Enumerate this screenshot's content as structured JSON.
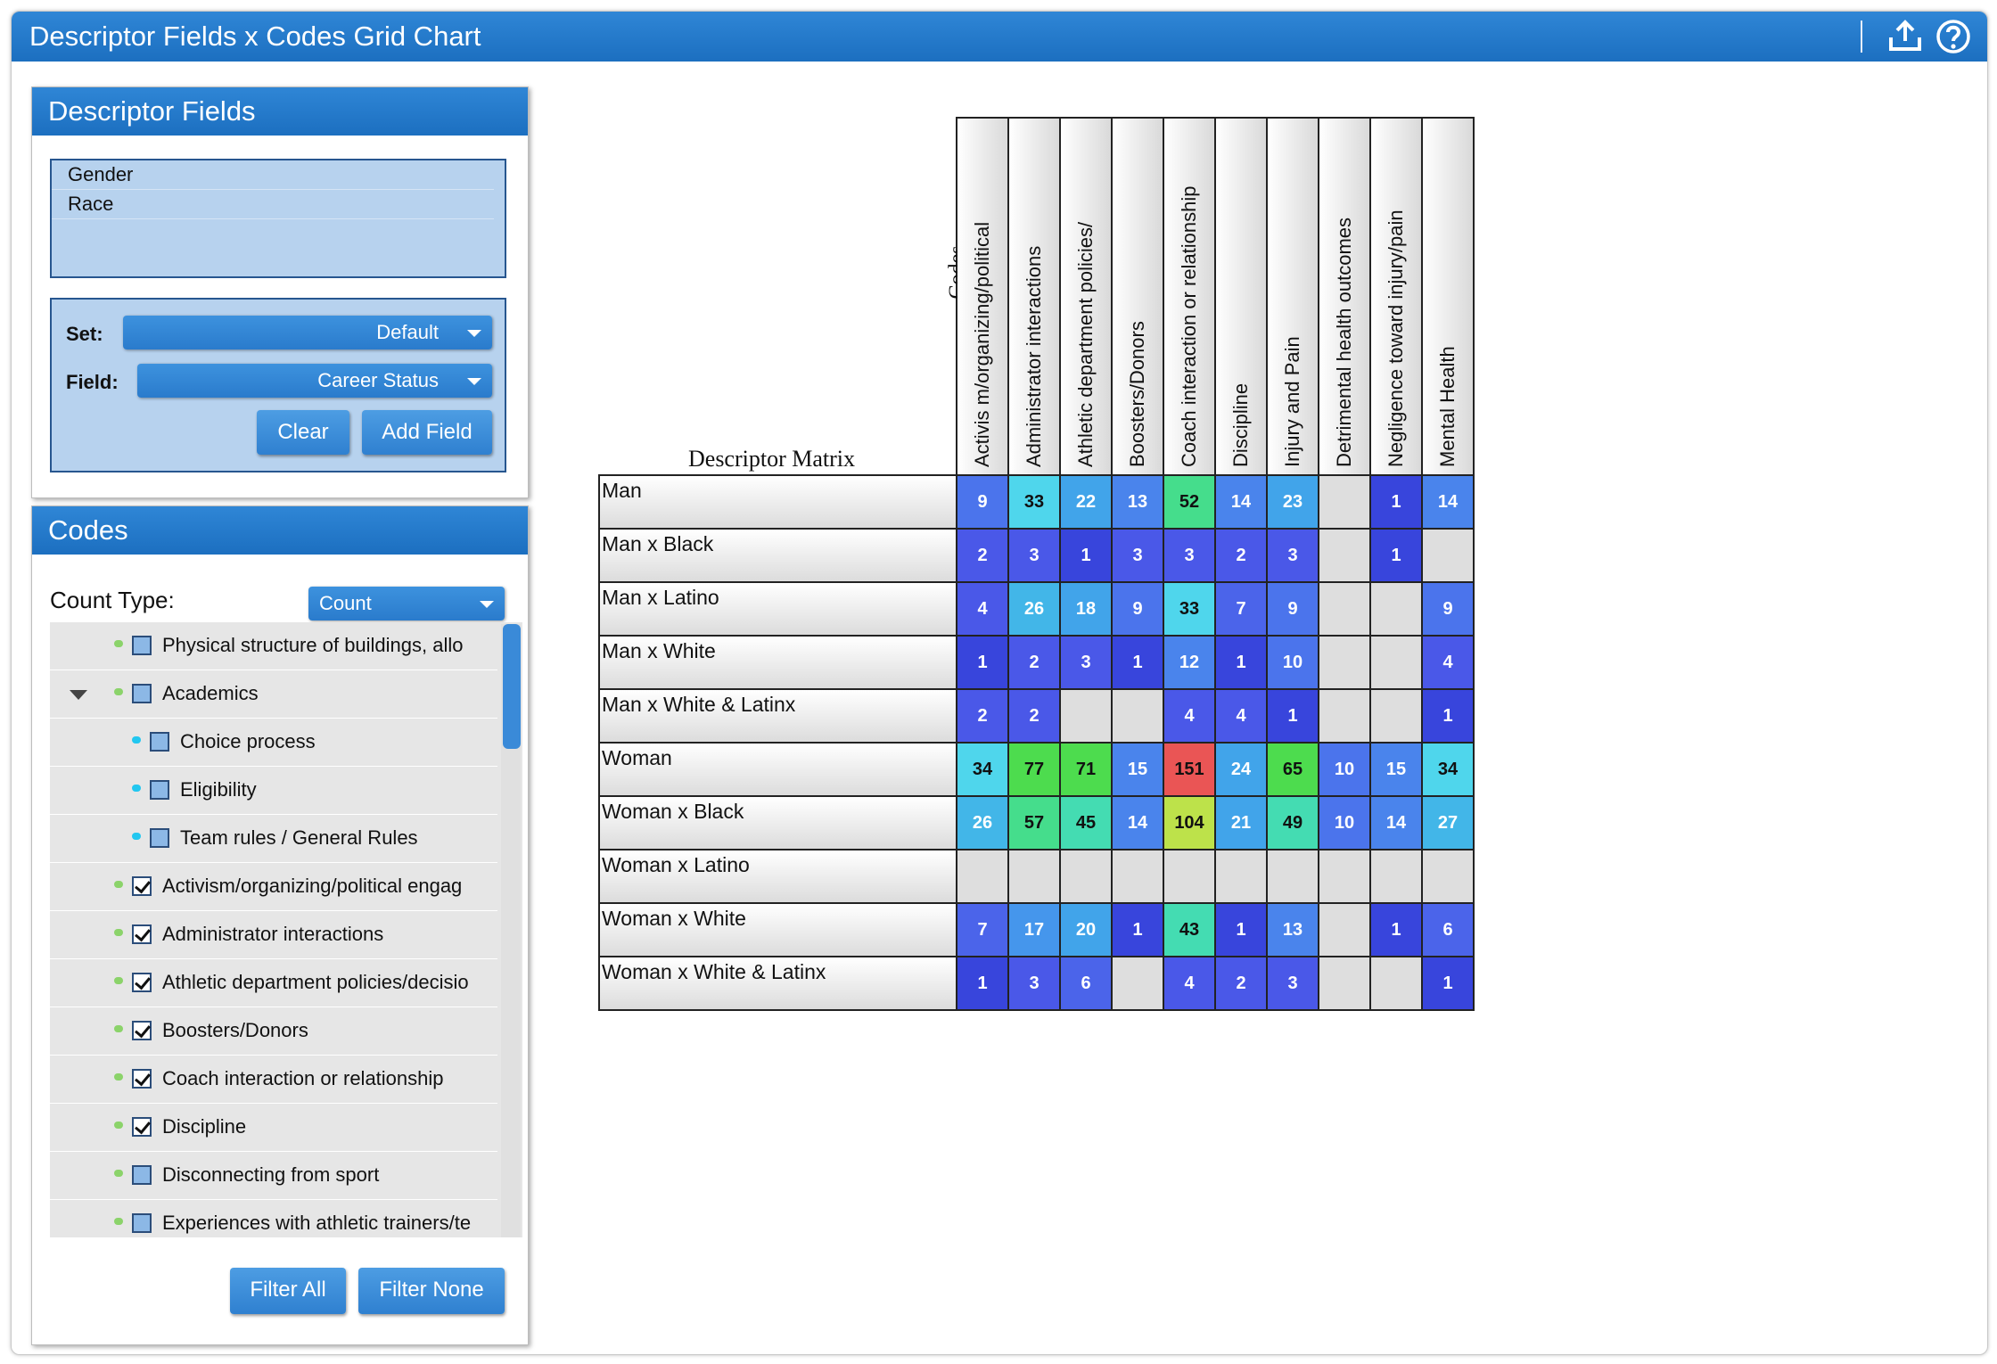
{
  "window": {
    "title": "Descriptor Fields x Codes Grid Chart",
    "upload_icon": "upload-icon",
    "help_icon": "help-icon"
  },
  "descriptor_fields": {
    "header": "Descriptor Fields",
    "items": [
      "Gender",
      "Race"
    ],
    "set_label": "Set:",
    "set_value": "Default",
    "field_label": "Field:",
    "field_value": "Career Status",
    "clear_label": "Clear",
    "add_field_label": "Add Field"
  },
  "codes": {
    "header": "Codes",
    "count_type_label": "Count Type:",
    "count_type_value": "Count",
    "items": [
      {
        "label": "Physical structure of buildings, allo",
        "level": 1,
        "checked": false,
        "dot": "#8bd36a",
        "expand": false
      },
      {
        "label": "Academics",
        "level": 1,
        "checked": false,
        "dot": "#8bd36a",
        "expand": true
      },
      {
        "label": "Choice process",
        "level": 2,
        "checked": false,
        "dot": "#22c7f0",
        "expand": false
      },
      {
        "label": "Eligibility",
        "level": 2,
        "checked": false,
        "dot": "#22c7f0",
        "expand": false
      },
      {
        "label": "Team rules / General Rules",
        "level": 2,
        "checked": false,
        "dot": "#22c7f0",
        "expand": false
      },
      {
        "label": "Activism/organizing/political engag",
        "level": 1,
        "checked": true,
        "dot": "#8bd36a",
        "expand": false
      },
      {
        "label": "Administrator interactions",
        "level": 1,
        "checked": true,
        "dot": "#8bd36a",
        "expand": false
      },
      {
        "label": "Athletic department policies/decisio",
        "level": 1,
        "checked": true,
        "dot": "#8bd36a",
        "expand": false
      },
      {
        "label": "Boosters/Donors",
        "level": 1,
        "checked": true,
        "dot": "#8bd36a",
        "expand": false
      },
      {
        "label": "Coach interaction or relationship",
        "level": 1,
        "checked": true,
        "dot": "#8bd36a",
        "expand": false
      },
      {
        "label": "Discipline",
        "level": 1,
        "checked": true,
        "dot": "#8bd36a",
        "expand": false
      },
      {
        "label": "Disconnecting from sport",
        "level": 1,
        "checked": false,
        "dot": "#8bd36a",
        "expand": false
      },
      {
        "label": "Experiences with athletic trainers/te",
        "level": 1,
        "checked": false,
        "dot": "#8bd36a",
        "expand": false
      }
    ],
    "filter_all_label": "Filter All",
    "filter_none_label": "Filter None"
  },
  "matrix": {
    "corner_title": "Descriptor Matrix",
    "codes_axis_label": "Codes",
    "columns": [
      "Activis m/organizing/political",
      "Administrator interactions",
      "Athletic department policies/",
      "Boosters/Donors",
      "Coach interaction or relationship",
      "Discipline",
      "Injury and Pain",
      "Detrimental health outcomes",
      "Negligence toward injury/pain",
      "Mental Health"
    ],
    "rows": [
      {
        "label": "Man",
        "values": [
          9,
          33,
          22,
          13,
          52,
          14,
          23,
          null,
          1,
          14
        ]
      },
      {
        "label": "Man x Black",
        "values": [
          2,
          3,
          1,
          3,
          3,
          2,
          3,
          null,
          1,
          null
        ]
      },
      {
        "label": "Man x Latino",
        "values": [
          4,
          26,
          18,
          9,
          33,
          7,
          9,
          null,
          null,
          9
        ]
      },
      {
        "label": "Man x White",
        "values": [
          1,
          2,
          3,
          1,
          12,
          1,
          10,
          null,
          null,
          4
        ]
      },
      {
        "label": "Man x White & Latinx",
        "values": [
          2,
          2,
          null,
          null,
          4,
          4,
          1,
          null,
          null,
          1
        ]
      },
      {
        "label": "Woman",
        "values": [
          34,
          77,
          71,
          15,
          151,
          24,
          65,
          10,
          15,
          34
        ]
      },
      {
        "label": "Woman x Black",
        "values": [
          26,
          57,
          45,
          14,
          104,
          21,
          49,
          10,
          14,
          27
        ]
      },
      {
        "label": "Woman x Latino",
        "values": [
          null,
          null,
          null,
          null,
          null,
          null,
          null,
          null,
          null,
          null
        ]
      },
      {
        "label": "Woman x White",
        "values": [
          7,
          17,
          20,
          1,
          43,
          1,
          13,
          null,
          1,
          6
        ]
      },
      {
        "label": "Woman x White & Latinx",
        "values": [
          1,
          3,
          6,
          null,
          4,
          2,
          3,
          null,
          null,
          1
        ]
      }
    ]
  }
}
